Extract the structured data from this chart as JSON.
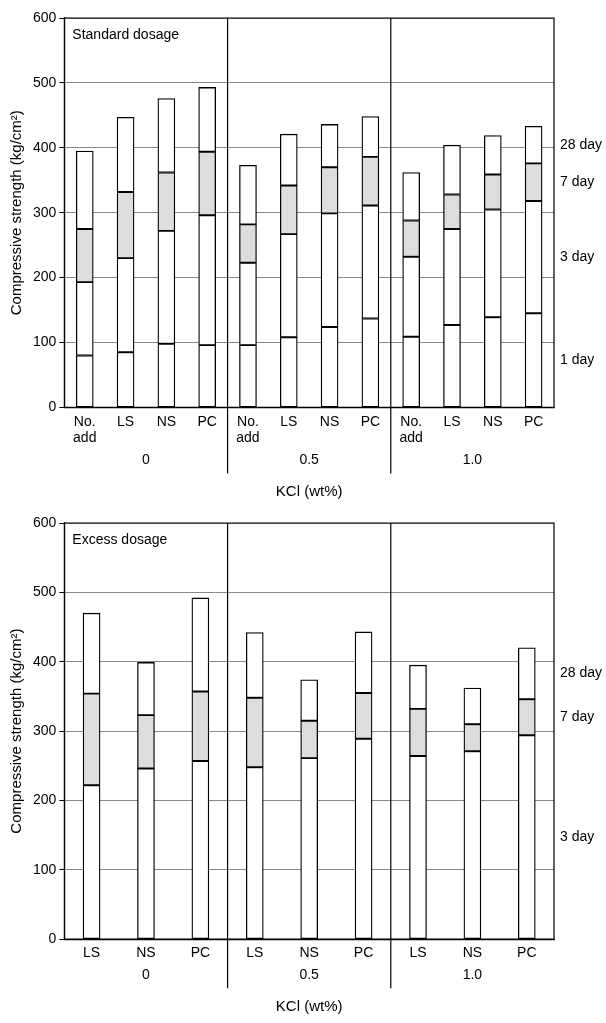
{
  "chart_data": [
    {
      "type": "bar",
      "title": "Standard dosage",
      "xlabel": "KCl (wt%)",
      "ylabel": "Compressive strength (kg/cm²)",
      "categories": [
        "No. add",
        "LS",
        "NS",
        "PC",
        "No. add",
        "LS",
        "NS",
        "PC",
        "No. add",
        "LS",
        "NS",
        "PC"
      ],
      "stacked": true,
      "ylim": [
        0,
        600
      ],
      "yticks": [
        0,
        100,
        200,
        300,
        400,
        500,
        600
      ],
      "grid": "y",
      "legend": false,
      "annotations": [
        "0",
        "0.5",
        "1.0"
      ],
      "series": [
        {
          "name": "1 day",
          "color": "#ffffff",
          "values": [
            80,
            85,
            98,
            96,
            96,
            108,
            124,
            137,
            109,
            127,
            139,
            145
          ]
        },
        {
          "name": "3 day",
          "color": "#ffffff",
          "values": [
            113,
            145,
            174,
            200,
            127,
            159,
            175,
            174,
            123,
            148,
            166,
            173
          ]
        },
        {
          "name": "7 day",
          "color": "#dddddd",
          "values": [
            82,
            102,
            90,
            98,
            59,
            75,
            71,
            75,
            56,
            53,
            54,
            58
          ]
        },
        {
          "name": "28 day",
          "color": "#ffffff",
          "values": [
            120,
            115,
            114,
            99,
            91,
            79,
            66,
            62,
            74,
            76,
            60,
            57
          ]
        }
      ]
    },
    {
      "type": "bar",
      "title": "Excess dosage",
      "xlabel": "KCl (wt%)",
      "ylabel": "Compressive strength (kg/cm²)",
      "categories": [
        "LS",
        "NS",
        "PC",
        "LS",
        "NS",
        "PC",
        "LS",
        "NS",
        "PC"
      ],
      "stacked": true,
      "ylim": [
        0,
        600
      ],
      "yticks": [
        0,
        100,
        200,
        300,
        400,
        500,
        600
      ],
      "grid": "y",
      "legend": false,
      "annotations": [
        "0",
        "0.5",
        "1.0"
      ],
      "series": [
        {
          "name": "3 day",
          "color": "#ffffff",
          "values": [
            222,
            246,
            257,
            248,
            261,
            289,
            264,
            271,
            294
          ]
        },
        {
          "name": "7 day",
          "color": "#dddddd",
          "values": [
            132,
            77,
            100,
            100,
            54,
            66,
            68,
            39,
            52
          ]
        },
        {
          "name": "28 day",
          "color": "#ffffff",
          "values": [
            116,
            76,
            135,
            94,
            59,
            88,
            63,
            52,
            74
          ]
        }
      ]
    }
  ]
}
